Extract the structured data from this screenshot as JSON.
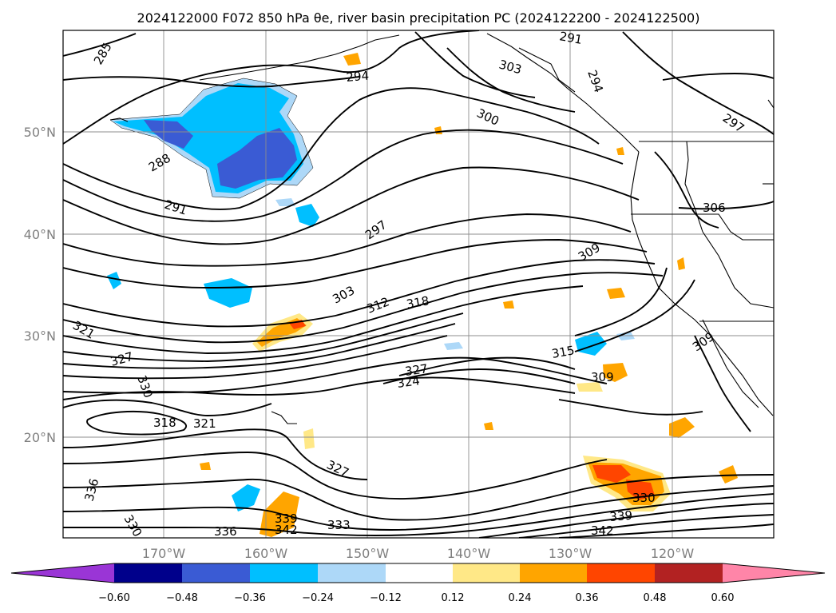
{
  "title": "2024122000 F072 850 hPa θe, river basin precipitation PC (2024122200 - 2024122500)",
  "map": {
    "lat_labels": [
      "50°N",
      "40°N",
      "30°N",
      "20°N"
    ],
    "lon_labels": [
      "170°W",
      "160°W",
      "150°W",
      "140°W",
      "130°W",
      "120°W"
    ],
    "gridlines": true
  },
  "contour_labels": [
    "285",
    "294",
    "303",
    "291",
    "294",
    "300",
    "297",
    "288",
    "291",
    "297",
    "306",
    "309",
    "303",
    "312",
    "318",
    "321",
    "327",
    "330",
    "315",
    "327",
    "324",
    "309",
    "309",
    "318",
    "321",
    "327",
    "330",
    "336",
    "330",
    "336",
    "339",
    "342",
    "333",
    "339",
    "342"
  ],
  "colorbar": {
    "ticks": [
      "−0.60",
      "−0.48",
      "−0.36",
      "−0.24",
      "−0.12",
      "0.12",
      "0.24",
      "0.36",
      "0.48",
      "0.60"
    ],
    "colors": [
      "#9a35d6",
      "#00008b",
      "#3a5bd4",
      "#00bfff",
      "#add8f8",
      "#ffffff",
      "#ffe887",
      "#ffa500",
      "#ff4500",
      "#b22222",
      "#ff85a8"
    ]
  },
  "fill_colors": {
    "neg_light": "#add8f8",
    "neg_mid": "#00bfff",
    "neg_dark": "#3a5bd4",
    "pos_light": "#ffe887",
    "pos_mid": "#ffa500",
    "pos_dark": "#ff4500"
  }
}
